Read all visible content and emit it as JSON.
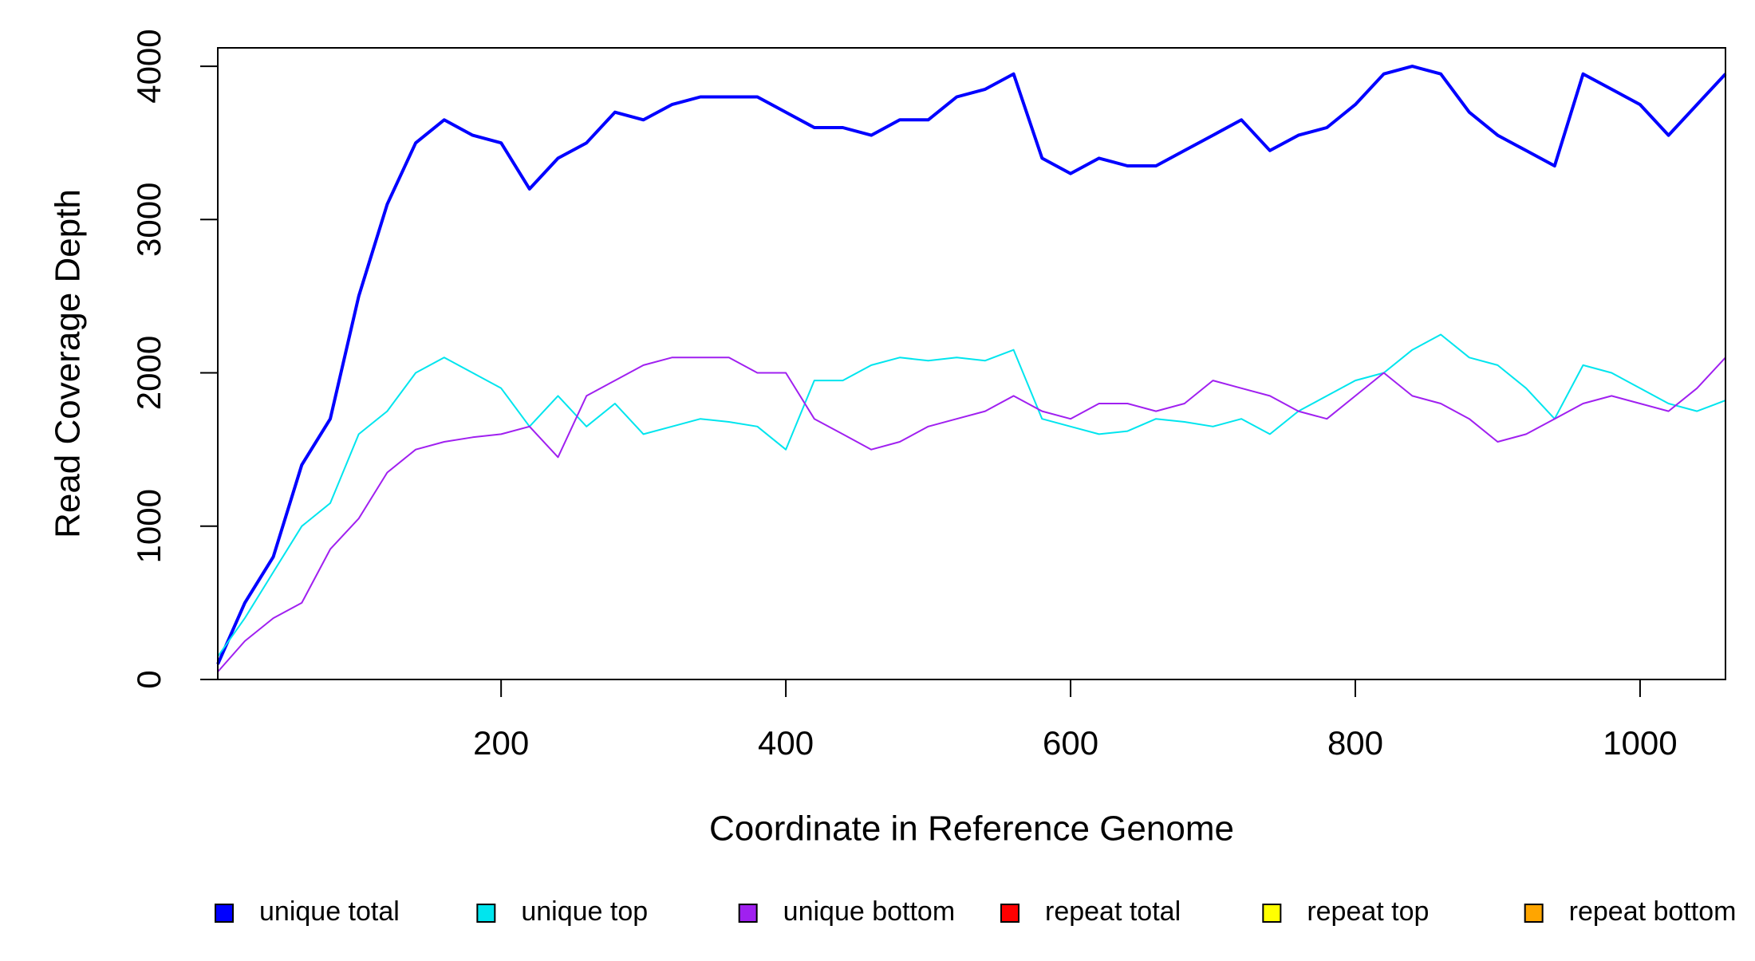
{
  "chart_data": {
    "type": "line",
    "x_label": "Coordinate in Reference Genome",
    "y_label": "Read Coverage Depth",
    "x": [
      1,
      20,
      40,
      60,
      80,
      100,
      120,
      140,
      160,
      180,
      200,
      220,
      240,
      260,
      280,
      300,
      320,
      340,
      360,
      380,
      400,
      420,
      440,
      460,
      480,
      500,
      520,
      540,
      560,
      580,
      600,
      620,
      640,
      660,
      680,
      700,
      720,
      740,
      760,
      780,
      800,
      820,
      840,
      860,
      880,
      900,
      920,
      940,
      960,
      980,
      1000,
      1020,
      1040,
      1060
    ],
    "series": [
      {
        "name": "unique total",
        "color": "#0000ff",
        "values": [
          100,
          500,
          800,
          1400,
          1700,
          2500,
          3100,
          3500,
          3650,
          3550,
          3500,
          3200,
          3400,
          3500,
          3700,
          3650,
          3750,
          3800,
          3800,
          3800,
          3700,
          3600,
          3600,
          3550,
          3650,
          3650,
          3800,
          3850,
          3950,
          3400,
          3300,
          3400,
          3350,
          3350,
          3450,
          3550,
          3650,
          3450,
          3550,
          3600,
          3750,
          3950,
          4000,
          3950,
          3700,
          3550,
          3450,
          3350,
          3950,
          3850,
          3750,
          3550,
          3750,
          3950
        ]
      },
      {
        "name": "unique top",
        "color": "#00e5ee",
        "values": [
          150,
          400,
          700,
          1000,
          1150,
          1600,
          1750,
          2000,
          2100,
          2000,
          1900,
          1650,
          1850,
          1650,
          1800,
          1600,
          1650,
          1700,
          1680,
          1650,
          1500,
          1950,
          1950,
          2050,
          2100,
          2080,
          2100,
          2080,
          2150,
          1700,
          1650,
          1600,
          1620,
          1700,
          1680,
          1650,
          1700,
          1600,
          1750,
          1850,
          1950,
          2000,
          2150,
          2250,
          2100,
          2050,
          1900,
          1700,
          2050,
          2000,
          1900,
          1800,
          1750,
          1820
        ]
      },
      {
        "name": "unique bottom",
        "color": "#a020f0",
        "values": [
          50,
          250,
          400,
          500,
          850,
          1050,
          1350,
          1500,
          1550,
          1580,
          1600,
          1650,
          1450,
          1850,
          1950,
          2050,
          2100,
          2100,
          2100,
          2000,
          2000,
          1700,
          1600,
          1500,
          1550,
          1650,
          1700,
          1750,
          1850,
          1750,
          1700,
          1800,
          1800,
          1750,
          1800,
          1950,
          1900,
          1850,
          1750,
          1700,
          1850,
          2000,
          1850,
          1800,
          1700,
          1550,
          1600,
          1700,
          1800,
          1850,
          1800,
          1750,
          1900,
          2100
        ]
      },
      {
        "name": "repeat total",
        "color": "#ff0000",
        "values": [
          0,
          0,
          0,
          0,
          0,
          0,
          0,
          0,
          0,
          0,
          0,
          0,
          0,
          0,
          0,
          0,
          0,
          0,
          0,
          0,
          0,
          0,
          0,
          0,
          0,
          0,
          0,
          0,
          0,
          0,
          0,
          0,
          0,
          0,
          0,
          0,
          0,
          0,
          0,
          0,
          0,
          0,
          0,
          0,
          0,
          0,
          0,
          0,
          0,
          0,
          0,
          0,
          0,
          0
        ]
      },
      {
        "name": "repeat top",
        "color": "#ffff00",
        "values": [
          0,
          0,
          0,
          0,
          0,
          0,
          0,
          0,
          0,
          0,
          0,
          0,
          0,
          0,
          0,
          0,
          0,
          0,
          0,
          0,
          0,
          0,
          0,
          0,
          0,
          0,
          0,
          0,
          0,
          0,
          0,
          0,
          0,
          0,
          0,
          0,
          0,
          0,
          0,
          0,
          0,
          0,
          0,
          0,
          0,
          0,
          0,
          0,
          0,
          0,
          0,
          0,
          0,
          0
        ]
      },
      {
        "name": "repeat bottom",
        "color": "#ffa500",
        "values": [
          0,
          0,
          0,
          0,
          0,
          0,
          0,
          0,
          0,
          0,
          0,
          0,
          0,
          0,
          0,
          0,
          0,
          0,
          0,
          0,
          0,
          0,
          0,
          0,
          0,
          0,
          0,
          0,
          0,
          0,
          0,
          0,
          0,
          0,
          0,
          0,
          0,
          0,
          0,
          0,
          0,
          0,
          0,
          0,
          0,
          0,
          0,
          0,
          0,
          0,
          0,
          0,
          0,
          0
        ]
      }
    ],
    "xlim": [
      1,
      1060
    ],
    "ylim": [
      0,
      4120
    ],
    "xticks": [
      200,
      400,
      600,
      800,
      1000
    ],
    "yticks": [
      0,
      1000,
      2000,
      3000,
      4000
    ],
    "grid": false,
    "legend": "bottom"
  }
}
